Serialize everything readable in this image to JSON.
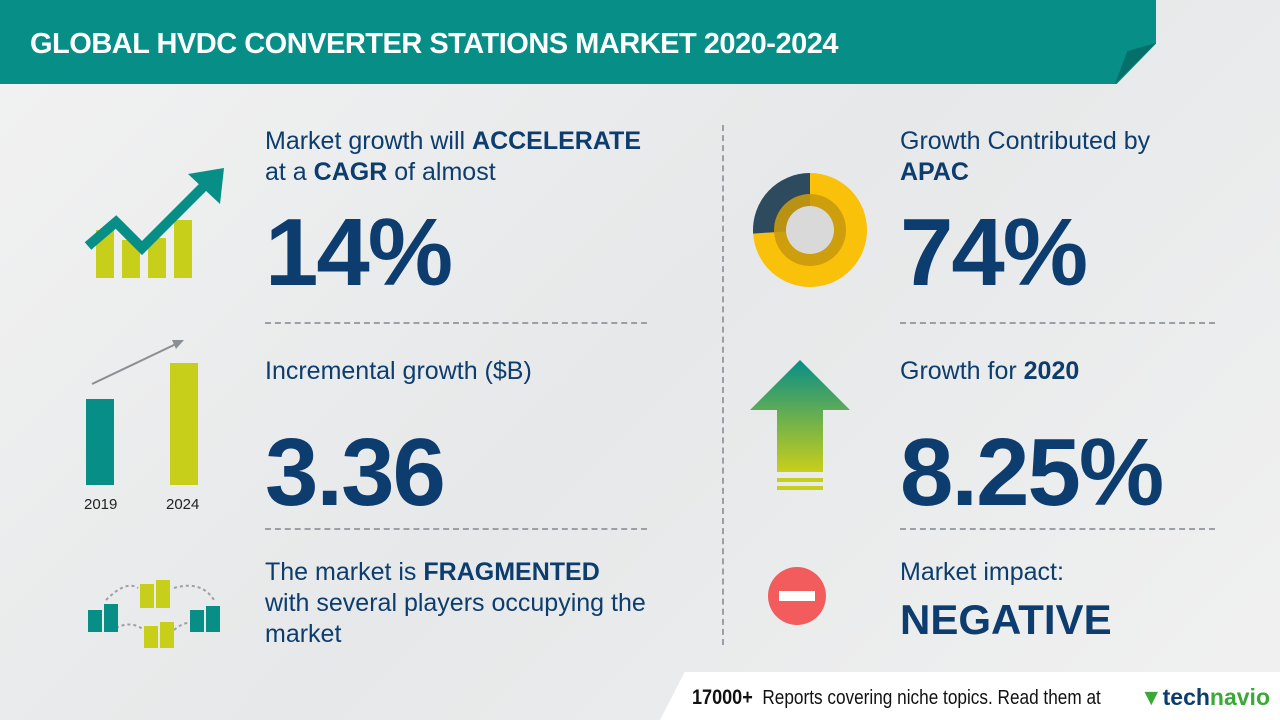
{
  "title": "GLOBAL HVDC CONVERTER STATIONS MARKET 2020-2024",
  "cagr": {
    "pre": "Market growth will",
    "emph1": "ACCELERATE",
    "mid": "at a",
    "emph2": "CAGR",
    "post": "of almost",
    "value": "14%"
  },
  "incremental": {
    "label": "Incremental growth ($B)",
    "value": "3.36",
    "years": [
      "2019",
      "2024"
    ]
  },
  "fragmented": {
    "pre": "The market is",
    "emph": "FRAGMENTED",
    "line2": "with several players occupying the",
    "line3": "market"
  },
  "region": {
    "label": "Growth Contributed by",
    "name": "APAC",
    "value": "74%",
    "share": 74
  },
  "yoy": {
    "label": "Growth for",
    "year": "2020",
    "value": "8.25%"
  },
  "impact": {
    "label": "Market impact:",
    "value": "NEGATIVE"
  },
  "footer": {
    "count": "17000+",
    "text": "Reports covering niche topics. Read them at",
    "logo_a": "tech",
    "logo_b": "navio"
  },
  "colors": {
    "teal": "#078e87",
    "navy": "#0d3d6e",
    "yellow": "#c8cf1a",
    "donut": "#f9c10a",
    "red": "#f25c5c"
  }
}
